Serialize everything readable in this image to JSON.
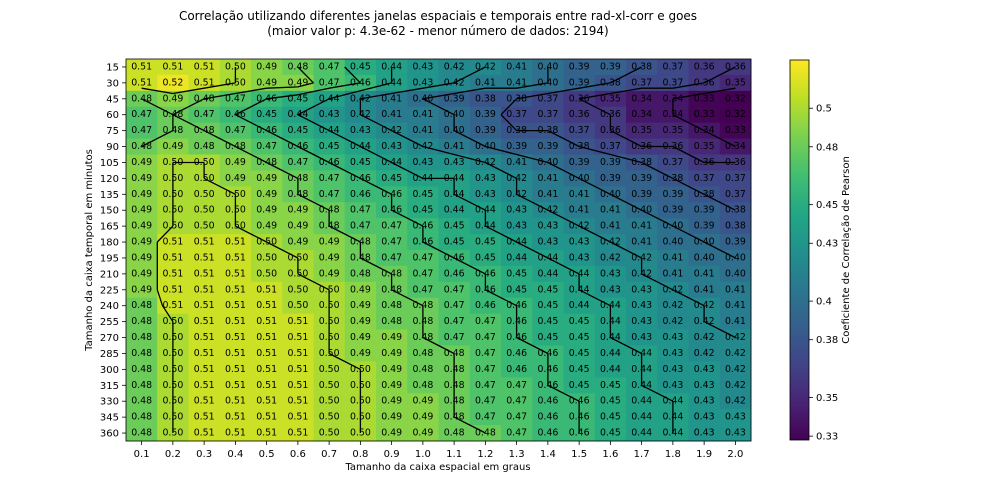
{
  "chart_data": {
    "type": "heatmap",
    "title": "Correlação utilizando diferentes janelas espaciais e temporais entre rad-xl-corr e goes",
    "subtitle": "(maior valor p: 4.3e-62 - menor número de dados: 2194)",
    "xlabel": "Tamanho da caixa espacial em graus",
    "ylabel": "Tamanho da caixa temporal em minutos",
    "colorbar_label": "Coeficiente de Correlação de Pearson",
    "colormap": "viridis",
    "vmin": 0.328,
    "vmax": 0.525,
    "colorbar_ticks": [
      "0.33",
      "0.35",
      "0.38",
      "0.4",
      "0.43",
      "0.45",
      "0.48",
      "0.5"
    ],
    "x": [
      "0.1",
      "0.2",
      "0.3",
      "0.4",
      "0.5",
      "0.6",
      "0.7",
      "0.8",
      "0.9",
      "1.0",
      "1.1",
      "1.2",
      "1.3",
      "1.4",
      "1.5",
      "1.6",
      "1.7",
      "1.8",
      "1.9",
      "2.0"
    ],
    "y": [
      "15",
      "30",
      "45",
      "60",
      "75",
      "90",
      "105",
      "120",
      "135",
      "150",
      "165",
      "180",
      "195",
      "210",
      "225",
      "240",
      "255",
      "270",
      "285",
      "300",
      "315",
      "330",
      "345",
      "360"
    ],
    "values": [
      [
        0.51,
        0.51,
        0.51,
        0.5,
        0.49,
        0.48,
        0.47,
        0.45,
        0.44,
        0.43,
        0.42,
        0.42,
        0.41,
        0.4,
        0.39,
        0.39,
        0.38,
        0.37,
        0.36,
        0.36
      ],
      [
        0.51,
        0.52,
        0.51,
        0.5,
        0.49,
        0.49,
        0.47,
        0.46,
        0.44,
        0.43,
        0.42,
        0.41,
        0.41,
        0.4,
        0.39,
        0.38,
        0.37,
        0.37,
        0.36,
        0.35
      ],
      [
        0.48,
        0.49,
        0.48,
        0.47,
        0.46,
        0.45,
        0.44,
        0.42,
        0.41,
        0.4,
        0.39,
        0.38,
        0.38,
        0.37,
        0.36,
        0.35,
        0.34,
        0.34,
        0.33,
        0.32
      ],
      [
        0.47,
        0.48,
        0.47,
        0.46,
        0.45,
        0.44,
        0.43,
        0.42,
        0.41,
        0.41,
        0.4,
        0.39,
        0.37,
        0.37,
        0.36,
        0.36,
        0.34,
        0.34,
        0.33,
        0.32
      ],
      [
        0.47,
        0.48,
        0.48,
        0.47,
        0.46,
        0.45,
        0.44,
        0.43,
        0.42,
        0.41,
        0.4,
        0.39,
        0.38,
        0.38,
        0.37,
        0.36,
        0.35,
        0.35,
        0.34,
        0.33
      ],
      [
        0.48,
        0.49,
        0.48,
        0.48,
        0.47,
        0.46,
        0.45,
        0.44,
        0.43,
        0.42,
        0.41,
        0.4,
        0.39,
        0.39,
        0.38,
        0.37,
        0.36,
        0.36,
        0.35,
        0.34
      ],
      [
        0.49,
        0.5,
        0.5,
        0.49,
        0.48,
        0.47,
        0.46,
        0.45,
        0.44,
        0.43,
        0.43,
        0.42,
        0.41,
        0.4,
        0.39,
        0.39,
        0.38,
        0.37,
        0.36,
        0.36
      ],
      [
        0.49,
        0.5,
        0.5,
        0.49,
        0.49,
        0.48,
        0.47,
        0.46,
        0.45,
        0.44,
        0.44,
        0.43,
        0.42,
        0.41,
        0.4,
        0.39,
        0.39,
        0.38,
        0.37,
        0.37
      ],
      [
        0.49,
        0.5,
        0.5,
        0.5,
        0.49,
        0.48,
        0.47,
        0.46,
        0.46,
        0.45,
        0.44,
        0.43,
        0.42,
        0.41,
        0.41,
        0.4,
        0.39,
        0.39,
        0.38,
        0.37
      ],
      [
        0.49,
        0.5,
        0.5,
        0.5,
        0.49,
        0.49,
        0.48,
        0.47,
        0.46,
        0.45,
        0.44,
        0.44,
        0.43,
        0.42,
        0.41,
        0.41,
        0.4,
        0.39,
        0.39,
        0.38
      ],
      [
        0.49,
        0.5,
        0.5,
        0.5,
        0.49,
        0.49,
        0.48,
        0.47,
        0.47,
        0.46,
        0.45,
        0.44,
        0.43,
        0.43,
        0.42,
        0.41,
        0.41,
        0.4,
        0.39,
        0.38
      ],
      [
        0.49,
        0.51,
        0.51,
        0.51,
        0.5,
        0.49,
        0.49,
        0.48,
        0.47,
        0.46,
        0.45,
        0.45,
        0.44,
        0.43,
        0.43,
        0.42,
        0.41,
        0.4,
        0.4,
        0.39
      ],
      [
        0.49,
        0.51,
        0.51,
        0.51,
        0.5,
        0.5,
        0.49,
        0.48,
        0.47,
        0.47,
        0.46,
        0.45,
        0.44,
        0.44,
        0.43,
        0.42,
        0.42,
        0.41,
        0.4,
        0.4
      ],
      [
        0.49,
        0.51,
        0.51,
        0.51,
        0.5,
        0.5,
        0.49,
        0.48,
        0.48,
        0.47,
        0.46,
        0.46,
        0.45,
        0.44,
        0.44,
        0.43,
        0.42,
        0.41,
        0.41,
        0.4
      ],
      [
        0.49,
        0.51,
        0.51,
        0.51,
        0.51,
        0.5,
        0.5,
        0.49,
        0.48,
        0.47,
        0.47,
        0.46,
        0.45,
        0.45,
        0.44,
        0.43,
        0.43,
        0.42,
        0.41,
        0.41
      ],
      [
        0.48,
        0.51,
        0.51,
        0.51,
        0.51,
        0.5,
        0.5,
        0.49,
        0.48,
        0.48,
        0.47,
        0.46,
        0.46,
        0.45,
        0.44,
        0.44,
        0.43,
        0.42,
        0.42,
        0.41
      ],
      [
        0.48,
        0.5,
        0.51,
        0.51,
        0.51,
        0.51,
        0.5,
        0.49,
        0.48,
        0.48,
        0.47,
        0.47,
        0.46,
        0.45,
        0.45,
        0.44,
        0.43,
        0.42,
        0.42,
        0.41
      ],
      [
        0.48,
        0.5,
        0.51,
        0.51,
        0.51,
        0.51,
        0.5,
        0.49,
        0.49,
        0.48,
        0.47,
        0.47,
        0.46,
        0.45,
        0.45,
        0.44,
        0.43,
        0.43,
        0.42,
        0.42
      ],
      [
        0.48,
        0.5,
        0.51,
        0.51,
        0.51,
        0.51,
        0.5,
        0.49,
        0.49,
        0.48,
        0.48,
        0.47,
        0.46,
        0.46,
        0.45,
        0.44,
        0.44,
        0.43,
        0.42,
        0.42
      ],
      [
        0.48,
        0.5,
        0.51,
        0.51,
        0.51,
        0.51,
        0.5,
        0.5,
        0.49,
        0.48,
        0.48,
        0.47,
        0.46,
        0.46,
        0.45,
        0.44,
        0.44,
        0.43,
        0.43,
        0.42
      ],
      [
        0.48,
        0.5,
        0.51,
        0.51,
        0.51,
        0.51,
        0.5,
        0.5,
        0.49,
        0.48,
        0.48,
        0.47,
        0.47,
        0.46,
        0.45,
        0.45,
        0.44,
        0.43,
        0.43,
        0.42
      ],
      [
        0.48,
        0.5,
        0.51,
        0.51,
        0.51,
        0.51,
        0.5,
        0.5,
        0.49,
        0.49,
        0.48,
        0.47,
        0.47,
        0.46,
        0.46,
        0.45,
        0.44,
        0.44,
        0.43,
        0.42
      ],
      [
        0.48,
        0.5,
        0.51,
        0.51,
        0.51,
        0.51,
        0.5,
        0.5,
        0.49,
        0.49,
        0.48,
        0.47,
        0.47,
        0.46,
        0.46,
        0.45,
        0.44,
        0.44,
        0.43,
        0.43
      ],
      [
        0.48,
        0.5,
        0.51,
        0.51,
        0.51,
        0.51,
        0.5,
        0.5,
        0.49,
        0.49,
        0.48,
        0.48,
        0.47,
        0.46,
        0.46,
        0.45,
        0.44,
        0.44,
        0.43,
        0.43
      ]
    ],
    "contour_levels": [
      0.34,
      0.36,
      0.38,
      0.4,
      0.42,
      0.44,
      0.46,
      0.48,
      0.5
    ],
    "grid": false,
    "legend": "none"
  }
}
